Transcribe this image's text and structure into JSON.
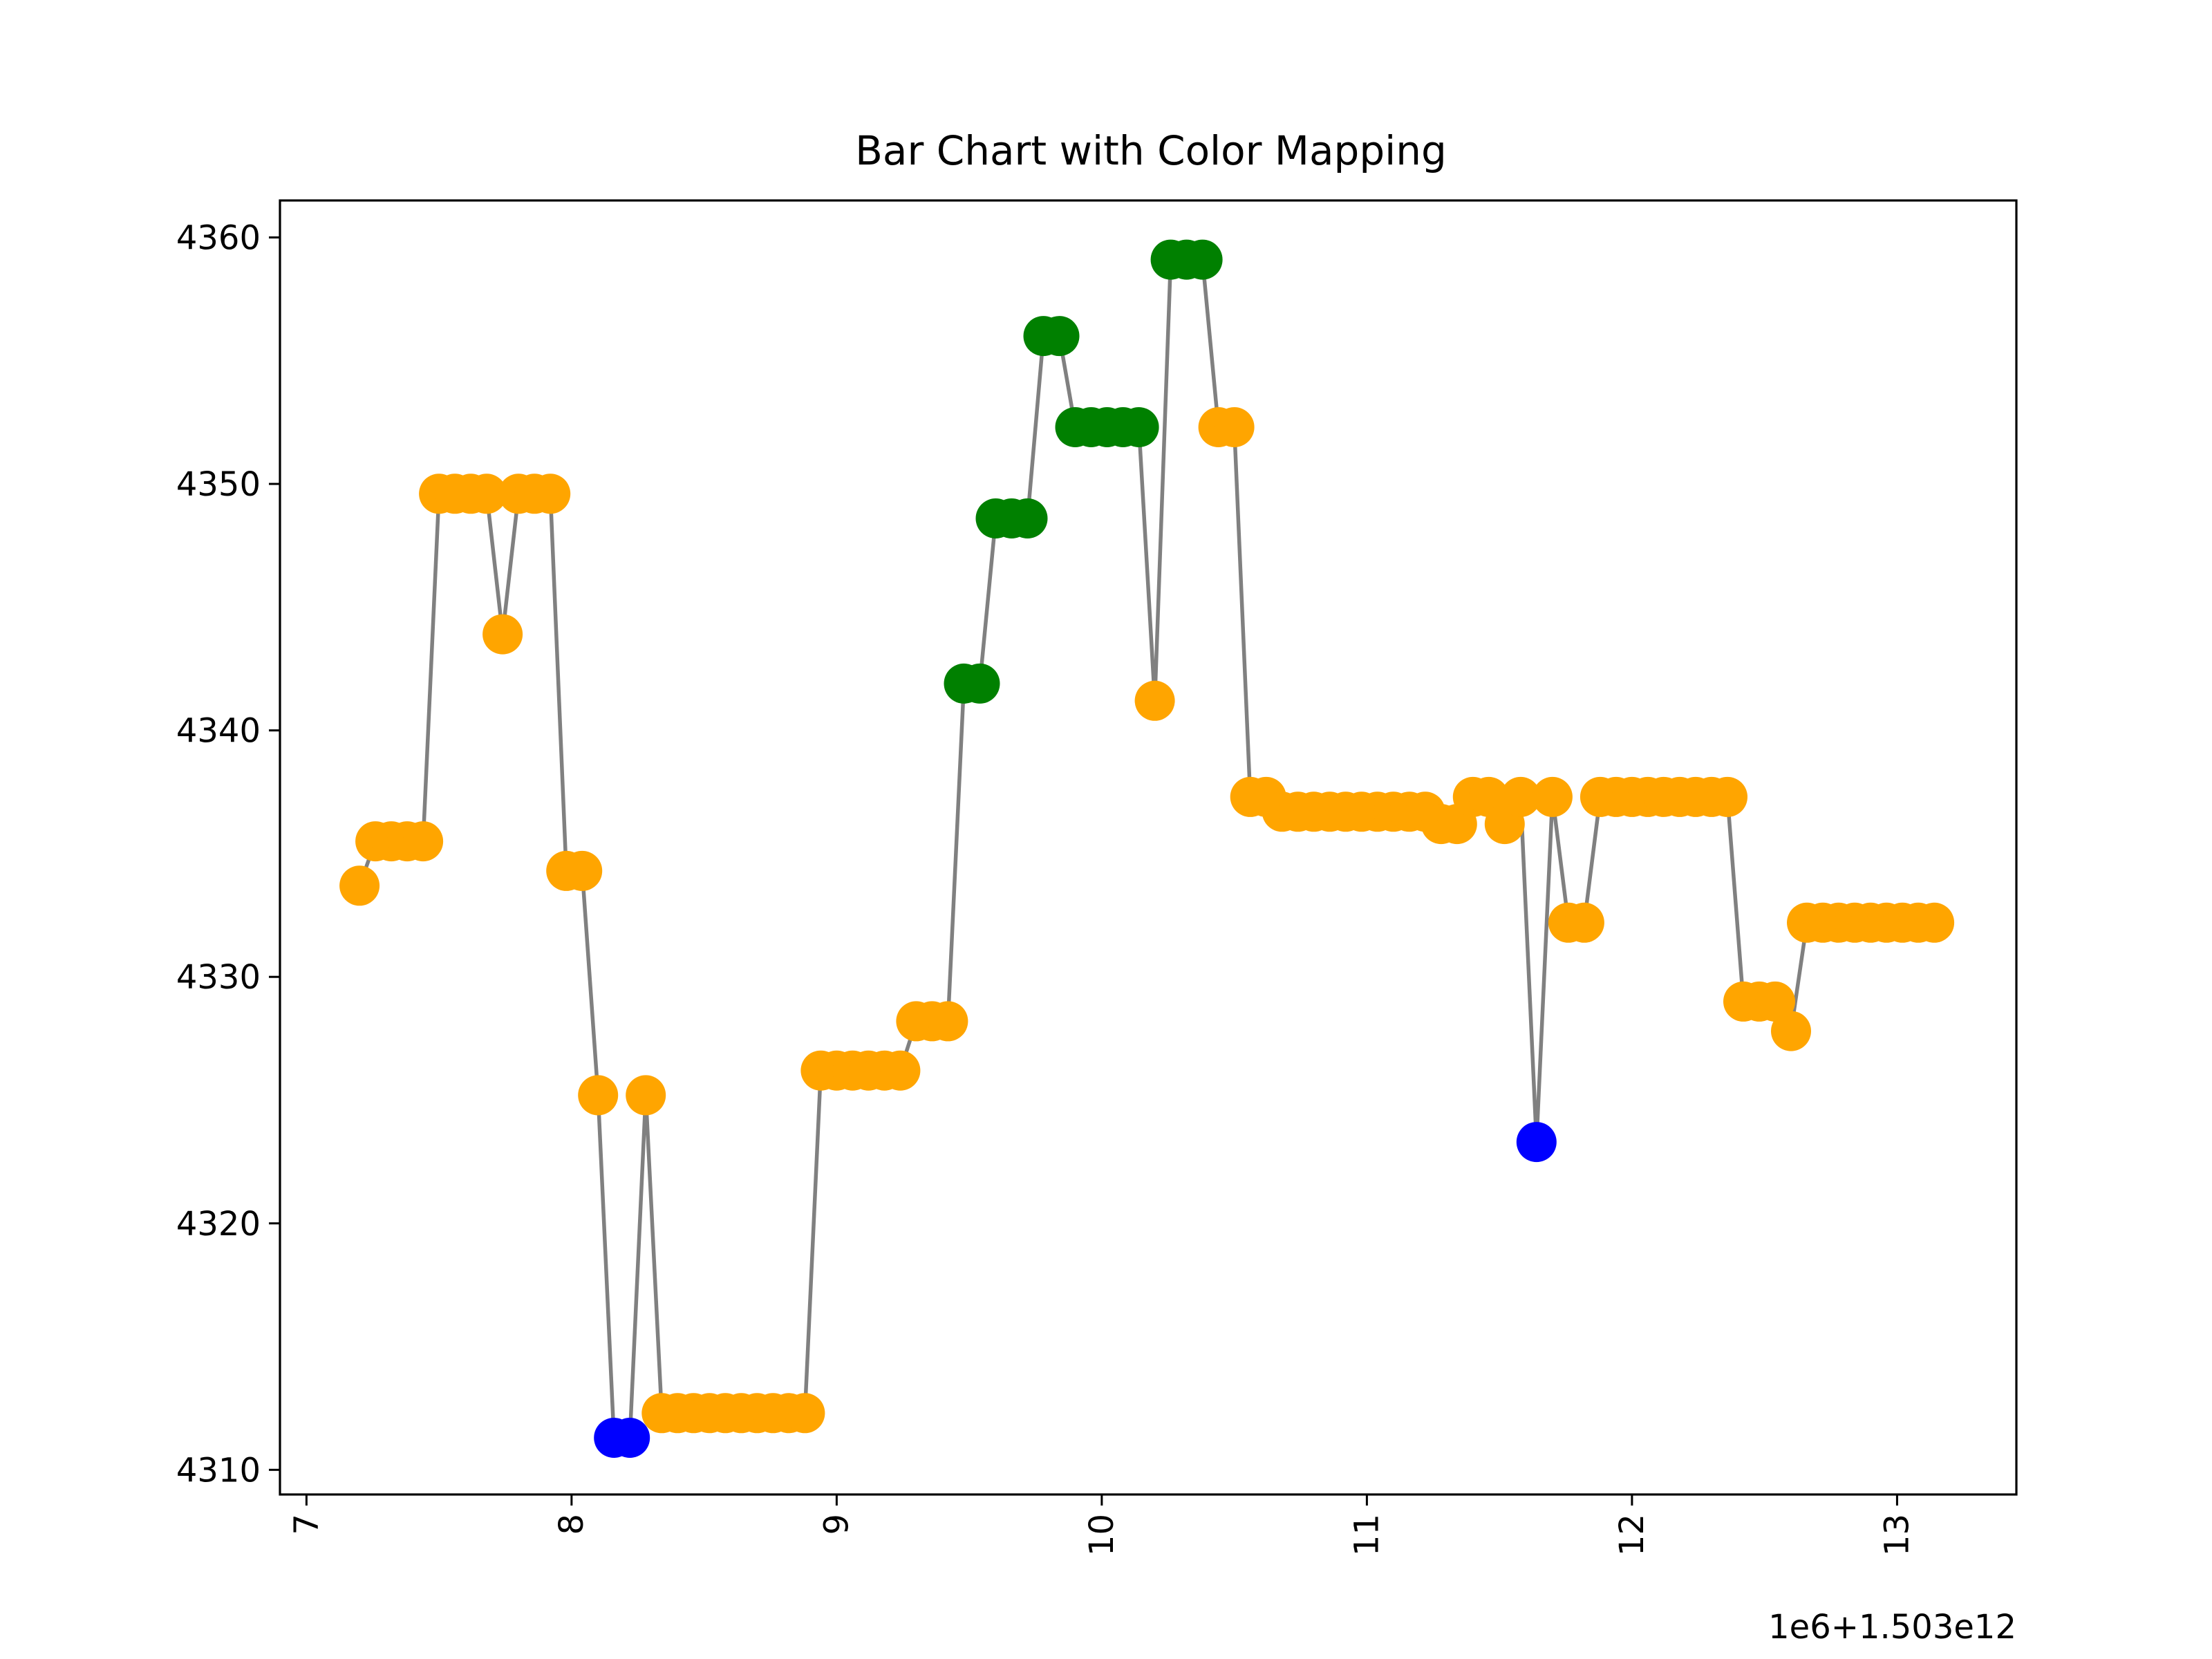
{
  "chart_data": {
    "type": "line",
    "title": "Bar Chart with Color Mapping",
    "xlabel": "",
    "ylabel": "",
    "x_offset_label": "1e6+1.503e12",
    "x_tick_labels": [
      "7",
      "8",
      "9",
      "10",
      "11",
      "12",
      "13"
    ],
    "y_tick_labels": [
      "4310",
      "4320",
      "4330",
      "4340",
      "4350",
      "4360"
    ],
    "x_ticks": [
      7,
      8,
      9,
      10,
      11,
      12,
      13
    ],
    "y_ticks": [
      4310,
      4320,
      4330,
      4340,
      4350,
      4360
    ],
    "xlim": [
      6.9,
      13.45
    ],
    "ylim": [
      4309.0,
      4361.5
    ],
    "grid": false,
    "line_color": "#808080",
    "colors": {
      "orange": "#ffa500",
      "green": "#008000",
      "blue": "#0000ff"
    },
    "points": [
      {
        "x": 7.2,
        "y": 4333.7,
        "c": "orange"
      },
      {
        "x": 7.26,
        "y": 4335.5,
        "c": "orange"
      },
      {
        "x": 7.32,
        "y": 4335.5,
        "c": "orange"
      },
      {
        "x": 7.38,
        "y": 4335.5,
        "c": "orange"
      },
      {
        "x": 7.44,
        "y": 4335.5,
        "c": "orange"
      },
      {
        "x": 7.5,
        "y": 4349.6,
        "c": "orange"
      },
      {
        "x": 7.56,
        "y": 4349.6,
        "c": "orange"
      },
      {
        "x": 7.62,
        "y": 4349.6,
        "c": "orange"
      },
      {
        "x": 7.68,
        "y": 4349.6,
        "c": "orange"
      },
      {
        "x": 7.74,
        "y": 4343.9,
        "c": "orange"
      },
      {
        "x": 7.8,
        "y": 4349.6,
        "c": "orange"
      },
      {
        "x": 7.86,
        "y": 4349.6,
        "c": "orange"
      },
      {
        "x": 7.92,
        "y": 4349.6,
        "c": "orange"
      },
      {
        "x": 7.98,
        "y": 4334.3,
        "c": "orange"
      },
      {
        "x": 8.04,
        "y": 4334.3,
        "c": "orange"
      },
      {
        "x": 8.1,
        "y": 4325.2,
        "c": "orange"
      },
      {
        "x": 8.16,
        "y": 4311.3,
        "c": "blue"
      },
      {
        "x": 8.22,
        "y": 4311.3,
        "c": "blue"
      },
      {
        "x": 8.28,
        "y": 4325.2,
        "c": "orange"
      },
      {
        "x": 8.34,
        "y": 4312.3,
        "c": "orange"
      },
      {
        "x": 8.4,
        "y": 4312.3,
        "c": "orange"
      },
      {
        "x": 8.46,
        "y": 4312.3,
        "c": "orange"
      },
      {
        "x": 8.52,
        "y": 4312.3,
        "c": "orange"
      },
      {
        "x": 8.58,
        "y": 4312.3,
        "c": "orange"
      },
      {
        "x": 8.64,
        "y": 4312.3,
        "c": "orange"
      },
      {
        "x": 8.7,
        "y": 4312.3,
        "c": "orange"
      },
      {
        "x": 8.76,
        "y": 4312.3,
        "c": "orange"
      },
      {
        "x": 8.82,
        "y": 4312.3,
        "c": "orange"
      },
      {
        "x": 8.88,
        "y": 4312.3,
        "c": "orange"
      },
      {
        "x": 8.94,
        "y": 4326.2,
        "c": "orange"
      },
      {
        "x": 9.0,
        "y": 4326.2,
        "c": "orange"
      },
      {
        "x": 9.06,
        "y": 4326.2,
        "c": "orange"
      },
      {
        "x": 9.12,
        "y": 4326.2,
        "c": "orange"
      },
      {
        "x": 9.18,
        "y": 4326.2,
        "c": "orange"
      },
      {
        "x": 9.24,
        "y": 4326.2,
        "c": "orange"
      },
      {
        "x": 9.3,
        "y": 4328.2,
        "c": "orange"
      },
      {
        "x": 9.36,
        "y": 4328.2,
        "c": "orange"
      },
      {
        "x": 9.42,
        "y": 4328.2,
        "c": "orange"
      },
      {
        "x": 9.48,
        "y": 4341.9,
        "c": "green"
      },
      {
        "x": 9.54,
        "y": 4341.9,
        "c": "green"
      },
      {
        "x": 9.6,
        "y": 4348.6,
        "c": "green"
      },
      {
        "x": 9.66,
        "y": 4348.6,
        "c": "green"
      },
      {
        "x": 9.72,
        "y": 4348.6,
        "c": "green"
      },
      {
        "x": 9.78,
        "y": 4356.0,
        "c": "green"
      },
      {
        "x": 9.84,
        "y": 4356.0,
        "c": "green"
      },
      {
        "x": 9.9,
        "y": 4352.3,
        "c": "green"
      },
      {
        "x": 9.96,
        "y": 4352.3,
        "c": "green"
      },
      {
        "x": 10.02,
        "y": 4352.3,
        "c": "green"
      },
      {
        "x": 10.08,
        "y": 4352.3,
        "c": "green"
      },
      {
        "x": 10.14,
        "y": 4352.3,
        "c": "green"
      },
      {
        "x": 10.2,
        "y": 4341.2,
        "c": "orange"
      },
      {
        "x": 10.26,
        "y": 4359.1,
        "c": "green"
      },
      {
        "x": 10.32,
        "y": 4359.1,
        "c": "green"
      },
      {
        "x": 10.38,
        "y": 4359.1,
        "c": "green"
      },
      {
        "x": 10.44,
        "y": 4352.3,
        "c": "orange"
      },
      {
        "x": 10.5,
        "y": 4352.3,
        "c": "orange"
      },
      {
        "x": 10.56,
        "y": 4337.3,
        "c": "orange"
      },
      {
        "x": 10.62,
        "y": 4337.3,
        "c": "orange"
      },
      {
        "x": 10.68,
        "y": 4336.7,
        "c": "orange"
      },
      {
        "x": 10.74,
        "y": 4336.7,
        "c": "orange"
      },
      {
        "x": 10.8,
        "y": 4336.7,
        "c": "orange"
      },
      {
        "x": 10.86,
        "y": 4336.7,
        "c": "orange"
      },
      {
        "x": 10.92,
        "y": 4336.7,
        "c": "orange"
      },
      {
        "x": 10.98,
        "y": 4336.7,
        "c": "orange"
      },
      {
        "x": 11.04,
        "y": 4336.7,
        "c": "orange"
      },
      {
        "x": 11.1,
        "y": 4336.7,
        "c": "orange"
      },
      {
        "x": 11.16,
        "y": 4336.7,
        "c": "orange"
      },
      {
        "x": 11.22,
        "y": 4336.7,
        "c": "orange"
      },
      {
        "x": 11.28,
        "y": 4336.2,
        "c": "orange"
      },
      {
        "x": 11.34,
        "y": 4336.2,
        "c": "orange"
      },
      {
        "x": 11.4,
        "y": 4337.3,
        "c": "orange"
      },
      {
        "x": 11.46,
        "y": 4337.3,
        "c": "orange"
      },
      {
        "x": 11.52,
        "y": 4336.2,
        "c": "orange"
      },
      {
        "x": 11.58,
        "y": 4337.3,
        "c": "orange"
      },
      {
        "x": 11.64,
        "y": 4323.3,
        "c": "blue"
      },
      {
        "x": 11.7,
        "y": 4337.3,
        "c": "orange"
      },
      {
        "x": 11.76,
        "y": 4332.2,
        "c": "orange"
      },
      {
        "x": 11.82,
        "y": 4332.2,
        "c": "orange"
      },
      {
        "x": 11.88,
        "y": 4337.3,
        "c": "orange"
      },
      {
        "x": 11.94,
        "y": 4337.3,
        "c": "orange"
      },
      {
        "x": 12.0,
        "y": 4337.3,
        "c": "orange"
      },
      {
        "x": 12.06,
        "y": 4337.3,
        "c": "orange"
      },
      {
        "x": 12.12,
        "y": 4337.3,
        "c": "orange"
      },
      {
        "x": 12.18,
        "y": 4337.3,
        "c": "orange"
      },
      {
        "x": 12.24,
        "y": 4337.3,
        "c": "orange"
      },
      {
        "x": 12.3,
        "y": 4337.3,
        "c": "orange"
      },
      {
        "x": 12.36,
        "y": 4337.3,
        "c": "orange"
      },
      {
        "x": 12.42,
        "y": 4329.0,
        "c": "orange"
      },
      {
        "x": 12.48,
        "y": 4329.0,
        "c": "orange"
      },
      {
        "x": 12.54,
        "y": 4329.0,
        "c": "orange"
      },
      {
        "x": 12.6,
        "y": 4327.8,
        "c": "orange"
      },
      {
        "x": 12.66,
        "y": 4332.2,
        "c": "orange"
      },
      {
        "x": 12.72,
        "y": 4332.2,
        "c": "orange"
      },
      {
        "x": 12.78,
        "y": 4332.2,
        "c": "orange"
      },
      {
        "x": 12.84,
        "y": 4332.2,
        "c": "orange"
      },
      {
        "x": 12.9,
        "y": 4332.2,
        "c": "orange"
      },
      {
        "x": 12.96,
        "y": 4332.2,
        "c": "orange"
      },
      {
        "x": 13.02,
        "y": 4332.2,
        "c": "orange"
      },
      {
        "x": 13.08,
        "y": 4332.2,
        "c": "orange"
      },
      {
        "x": 13.14,
        "y": 4332.2,
        "c": "orange"
      }
    ]
  }
}
